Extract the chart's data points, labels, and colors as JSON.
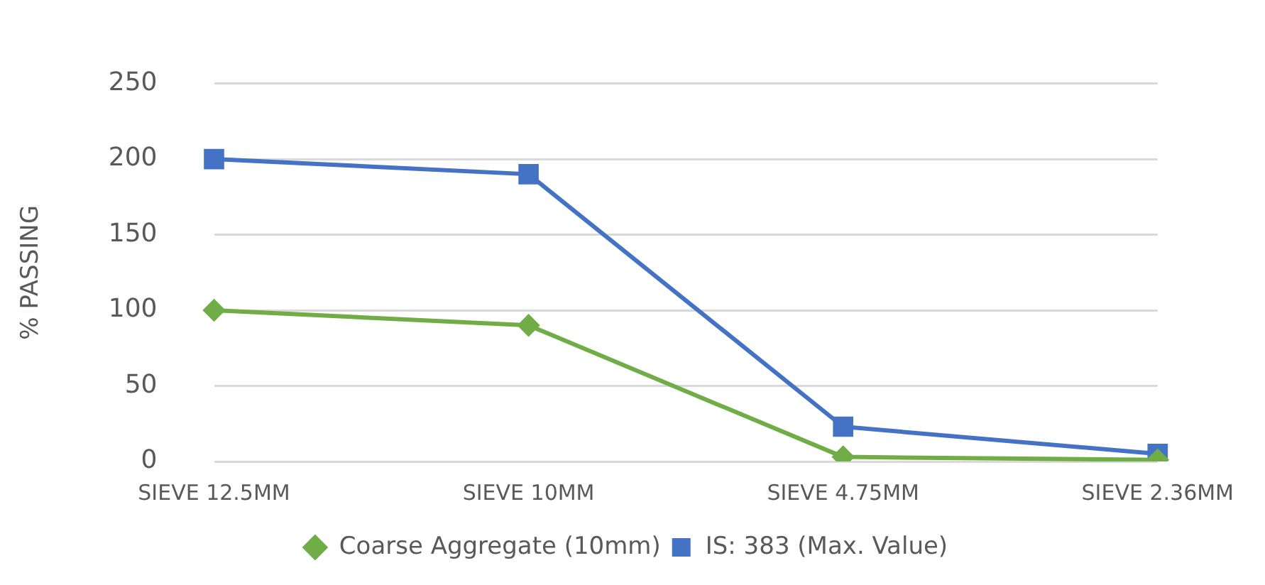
{
  "chart_data": {
    "type": "line",
    "ylabel": "% PASSING",
    "categories": [
      "SIEVE 12.5MM",
      "SIEVE 10MM",
      "SIEVE 4.75MM",
      "SIEVE 2.36MM"
    ],
    "series": [
      {
        "name": "Coarse Aggregate (10mm)",
        "color": "#70ad47",
        "marker": "diamond",
        "values": [
          100,
          90,
          3,
          1
        ]
      },
      {
        "name": "IS: 383 (Max. Value)",
        "color": "#4472c4",
        "marker": "square",
        "values": [
          200,
          190,
          23,
          5
        ]
      }
    ],
    "ylim": [
      0,
      250
    ],
    "yticks": [
      0,
      50,
      100,
      150,
      200,
      250
    ],
    "grid": "y",
    "legend": "bottom",
    "line_style": "solid"
  }
}
